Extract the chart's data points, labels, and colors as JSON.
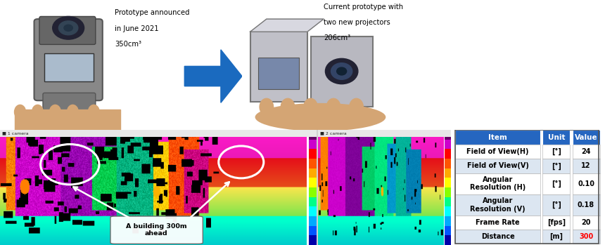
{
  "fig_width": 8.6,
  "fig_height": 3.49,
  "bg_color": "#ffffff",
  "top_left_text1": "Prototype announced",
  "top_left_text2": "in June 2021",
  "top_left_text3": "350cm³",
  "top_right_text1": "Current prototype with",
  "top_right_text2": "two new projectors",
  "top_right_text3": "206cm³",
  "annotation_text": "A building 300m\nahead",
  "table_header": [
    "Item",
    "Unit",
    "Value"
  ],
  "table_rows": [
    [
      "Field of View(H)",
      "[°]",
      "24"
    ],
    [
      "Field of View(V)",
      "[°]",
      "12"
    ],
    [
      "Angular\nResolution (H)",
      "[°]",
      "0.10"
    ],
    [
      "Angular\nResolution (V)",
      "[°]",
      "0.18"
    ],
    [
      "Frame Rate",
      "[fps]",
      "20"
    ],
    [
      "Distance",
      "[m]",
      "300"
    ]
  ],
  "table_value_colors": [
    "black",
    "black",
    "black",
    "black",
    "black",
    "red"
  ],
  "header_bg": "#2566c0",
  "header_fg": "#ffffff",
  "row_bg_odd": "#ffffff",
  "row_bg_even": "#dce6f1",
  "table_border": "#aaaaaa",
  "arrow_color": "#1a6abf",
  "hand_color": "#d4a574",
  "lidar_bg": "#0a0a0a",
  "titlebar_color": "#e8e8e8"
}
